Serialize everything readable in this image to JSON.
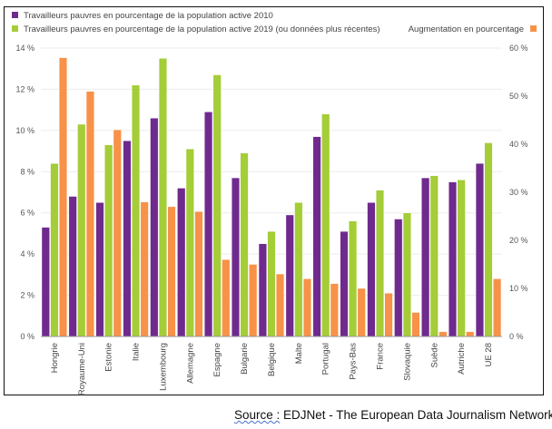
{
  "chart_data": {
    "type": "bar",
    "categories": [
      "Hongrie",
      "Royaume-Uni",
      "Estonie",
      "Italie",
      "Luxembourg",
      "Allemagne",
      "Espagne",
      "Bulgarie",
      "Belgique",
      "Malte",
      "Portugal",
      "Pays-Bas",
      "France",
      "Slovaquie",
      "Suède",
      "Autriche",
      "UE 28"
    ],
    "series": [
      {
        "name": "Travailleurs pauvres en pourcentage de la population active 2010",
        "axis": "left",
        "color": "#6f2a8e",
        "values": [
          5.3,
          6.8,
          6.5,
          9.5,
          10.6,
          7.2,
          10.9,
          7.7,
          4.5,
          5.9,
          9.7,
          5.1,
          6.5,
          5.7,
          7.7,
          7.5,
          8.4
        ]
      },
      {
        "name": "Travailleurs pauvres en pourcentage de la population active 2019 (ou données plus récentes)",
        "axis": "left",
        "color": "#a4cd37",
        "values": [
          8.4,
          10.3,
          9.3,
          12.2,
          13.5,
          9.1,
          12.7,
          8.9,
          5.1,
          6.5,
          10.8,
          5.6,
          7.1,
          6.0,
          7.8,
          7.6,
          9.4
        ]
      },
      {
        "name": "Augmentation en pourcentage",
        "axis": "right",
        "color": "#f79248",
        "values": [
          58,
          51,
          43,
          28,
          27,
          26,
          16,
          15,
          13,
          12,
          11,
          10,
          9,
          5,
          1,
          1,
          12
        ]
      }
    ],
    "y_left": {
      "ticks": [
        "0 %",
        "2 %",
        "4 %",
        "6 %",
        "8 %",
        "10 %",
        "12 %",
        "14 %"
      ],
      "range": [
        0,
        14
      ]
    },
    "y_right": {
      "ticks": [
        "0 %",
        "10 %",
        "20 %",
        "30 %",
        "40 %",
        "50 %",
        "60 %"
      ],
      "range": [
        0,
        60
      ]
    },
    "grid": true,
    "legend_placement": "top"
  },
  "source": {
    "prefix": "Source :",
    "text": " EDJNet - The European Data Journalism Network."
  }
}
